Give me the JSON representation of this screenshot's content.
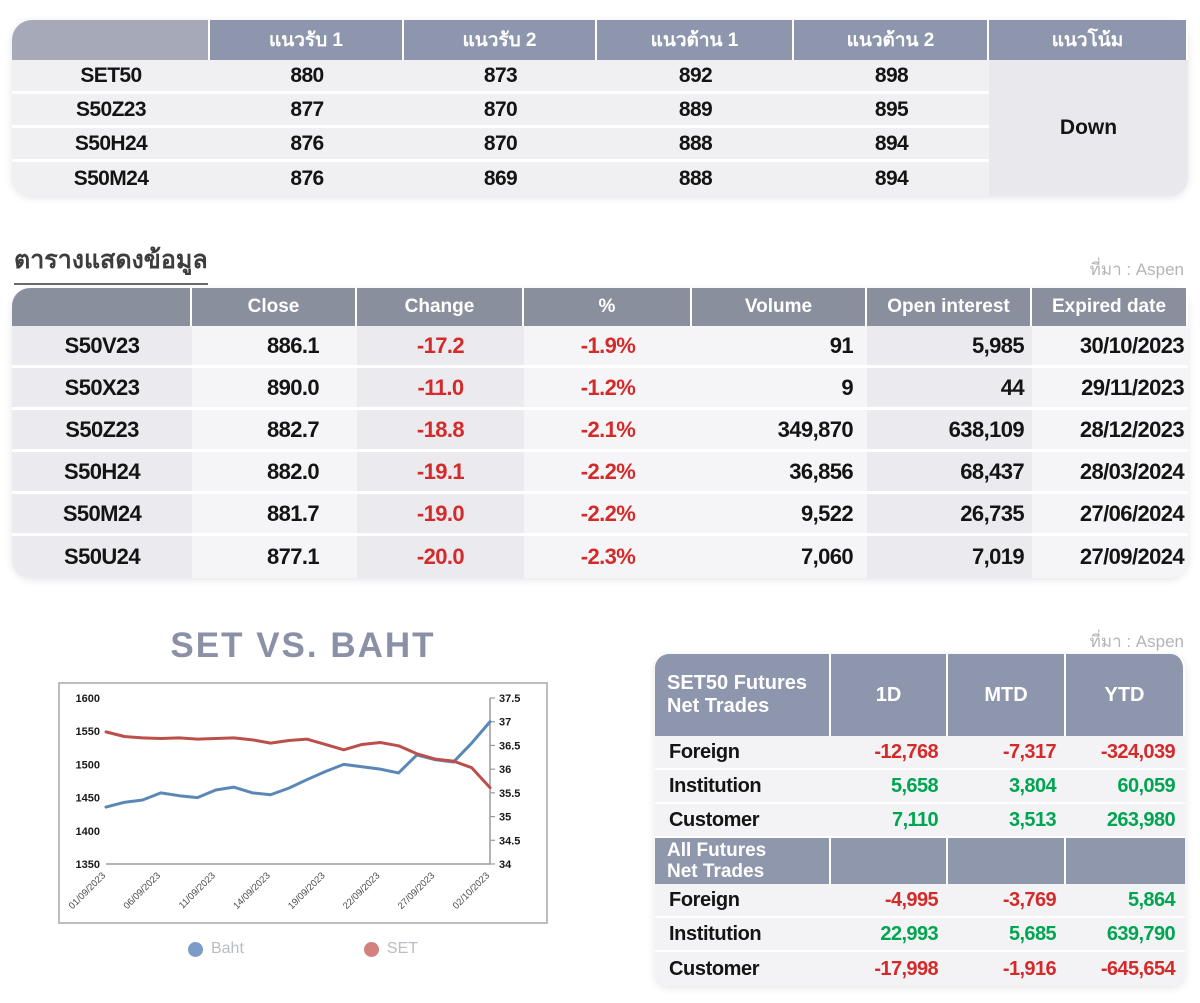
{
  "colors": {
    "negative": "#d42a2a",
    "positive": "#00a551",
    "header_bg": "#8d96ac"
  },
  "source_label": "ที่มา : Aspen",
  "levels_table": {
    "headers": [
      "",
      "แนวรับ 1",
      "แนวรับ 2",
      "แนวต้าน 1",
      "แนวต้าน 2",
      "แนวโน้ม"
    ],
    "rows": [
      {
        "name": "SET50",
        "s1": "880",
        "s2": "873",
        "r1": "892",
        "r2": "898"
      },
      {
        "name": "S50Z23",
        "s1": "877",
        "s2": "870",
        "r1": "889",
        "r2": "895"
      },
      {
        "name": "S50H24",
        "s1": "876",
        "s2": "870",
        "r1": "888",
        "r2": "894"
      },
      {
        "name": "S50M24",
        "s1": "876",
        "s2": "869",
        "r1": "888",
        "r2": "894"
      }
    ],
    "trend": "Down"
  },
  "data_table": {
    "title": "ตารางแสดงข้อมูล",
    "headers": [
      "",
      "Close",
      "Change",
      "%",
      "Volume",
      "Open interest",
      "Expired date"
    ],
    "rows": [
      {
        "name": "S50V23",
        "close": "886.1",
        "change": "-17.2",
        "pct": "-1.9%",
        "volume": "91",
        "oi": "5,985",
        "exp": "30/10/2023"
      },
      {
        "name": "S50X23",
        "close": "890.0",
        "change": "-11.0",
        "pct": "-1.2%",
        "volume": "9",
        "oi": "44",
        "exp": "29/11/2023"
      },
      {
        "name": "S50Z23",
        "close": "882.7",
        "change": "-18.8",
        "pct": "-2.1%",
        "volume": "349,870",
        "oi": "638,109",
        "exp": "28/12/2023"
      },
      {
        "name": "S50H24",
        "close": "882.0",
        "change": "-19.1",
        "pct": "-2.2%",
        "volume": "36,856",
        "oi": "68,437",
        "exp": "28/03/2024"
      },
      {
        "name": "S50M24",
        "close": "881.7",
        "change": "-19.0",
        "pct": "-2.2%",
        "volume": "9,522",
        "oi": "26,735",
        "exp": "27/06/2024"
      },
      {
        "name": "S50U24",
        "close": "877.1",
        "change": "-20.0",
        "pct": "-2.3%",
        "volume": "7,060",
        "oi": "7,019",
        "exp": "27/09/2024"
      }
    ]
  },
  "chart_data": {
    "type": "line",
    "title": "SET VS. BAHT",
    "x_tick_labels": [
      "01/09/2023",
      "06/09/2023",
      "11/09/2023",
      "14/09/2023",
      "19/09/2023",
      "22/09/2023",
      "27/09/2023",
      "02/10/2023"
    ],
    "x_tick_every": 3,
    "left_axis": {
      "min": 1350,
      "max": 1600,
      "step": 50
    },
    "right_axis": {
      "min": 34,
      "max": 37.5,
      "step": 0.5
    },
    "legend_position": "bottom",
    "grid": false,
    "series": [
      {
        "name": "Baht",
        "axis": "right",
        "color": "#5b87b7",
        "legend_color": "#7b9cc9",
        "values": [
          35.2,
          35.3,
          35.35,
          35.5,
          35.44,
          35.4,
          35.56,
          35.62,
          35.5,
          35.46,
          35.6,
          35.78,
          35.95,
          36.1,
          36.05,
          36.0,
          35.92,
          36.3,
          36.2,
          36.15,
          36.55,
          37.0
        ]
      },
      {
        "name": "SET",
        "axis": "left",
        "color": "#bb4f4c",
        "legend_color": "#d1827f",
        "values": [
          1549,
          1542,
          1540,
          1539,
          1540,
          1538,
          1539,
          1540,
          1537,
          1532,
          1536,
          1538,
          1530,
          1522,
          1530,
          1533,
          1528,
          1516,
          1508,
          1505,
          1495,
          1465
        ]
      }
    ]
  },
  "net_trades": {
    "set50_title_line1": "SET50 Futures",
    "set50_title_line2": "Net Trades",
    "all_title_line1": "All Futures",
    "all_title_line2": "Net Trades",
    "columns": [
      "1D",
      "MTD",
      "YTD"
    ],
    "set50_rows": [
      {
        "name": "Foreign",
        "d1": "-12,768",
        "mtd": "-7,317",
        "ytd": "-324,039"
      },
      {
        "name": "Institution",
        "d1": "5,658",
        "mtd": "3,804",
        "ytd": "60,059"
      },
      {
        "name": "Customer",
        "d1": "7,110",
        "mtd": "3,513",
        "ytd": "263,980"
      }
    ],
    "all_rows": [
      {
        "name": "Foreign",
        "d1": "-4,995",
        "mtd": "-3,769",
        "ytd": "5,864"
      },
      {
        "name": "Institution",
        "d1": "22,993",
        "mtd": "5,685",
        "ytd": "639,790"
      },
      {
        "name": "Customer",
        "d1": "-17,998",
        "mtd": "-1,916",
        "ytd": "-645,654"
      }
    ]
  }
}
